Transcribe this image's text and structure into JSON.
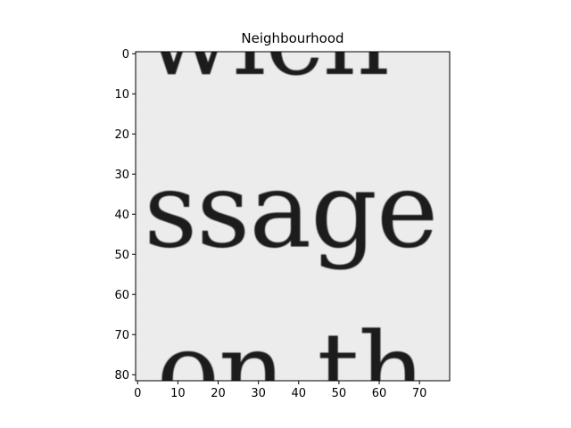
{
  "chart_data": {
    "type": "heatmap",
    "title": "Neighbourhood",
    "xlabel": "",
    "ylabel": "",
    "xlim": [
      -0.5,
      77.5
    ],
    "ylim": [
      81.5,
      -0.5
    ],
    "x_ticks": [
      0,
      10,
      20,
      30,
      40,
      50,
      60,
      70
    ],
    "y_ticks": [
      0,
      10,
      20,
      30,
      40,
      50,
      60,
      70,
      80
    ],
    "colormap": "gray",
    "background_color": "#eeeeee",
    "image_content": "grayscale crop of printed serif text",
    "text_fragments": [
      {
        "text": "wich",
        "row": 5,
        "col": 32
      },
      {
        "text": "ssage",
        "row": 48,
        "col": 38
      },
      {
        "text": "on th",
        "row": 88,
        "col": 38
      }
    ]
  }
}
